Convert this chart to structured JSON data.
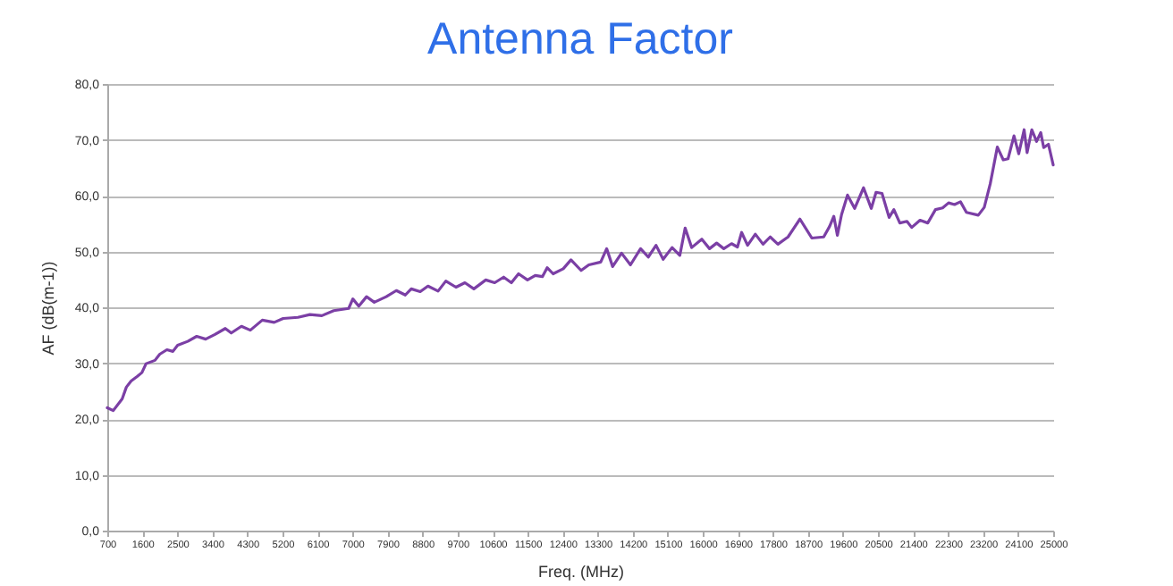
{
  "chart_data": {
    "type": "line",
    "title": "Antenna Factor",
    "xlabel": "Freq. (MHz)",
    "ylabel": "AF (dB(m-1))",
    "x": [
      700,
      853,
      1083,
      1190,
      1313,
      1466,
      1589,
      1696,
      1925,
      2048,
      2232,
      2385,
      2507,
      2767,
      2997,
      3227,
      3456,
      3732,
      3885,
      4146,
      4375,
      4682,
      4988,
      5218,
      5600,
      5906,
      6212,
      6518,
      6901,
      7008,
      7161,
      7360,
      7559,
      7866,
      8126,
      8356,
      8509,
      8739,
      8938,
      9198,
      9397,
      9657,
      9887,
      10117,
      10423,
      10652,
      10882,
      11081,
      11265,
      11495,
      11694,
      11878,
      12000,
      12153,
      12413,
      12612,
      12872,
      13071,
      13376,
      13529,
      13682,
      13911,
      14140,
      14400,
      14598,
      14797,
      14980,
      15209,
      15408,
      15545,
      15713,
      15973,
      16171,
      16354,
      16538,
      16737,
      16889,
      16996,
      17149,
      17348,
      17546,
      17730,
      17928,
      18188,
      18494,
      18799,
      19104,
      19257,
      19364,
      19456,
      19563,
      19716,
      19899,
      20128,
      20327,
      20449,
      20602,
      20785,
      20907,
      21060,
      21243,
      21365,
      21579,
      21777,
      21976,
      22159,
      22312,
      22465,
      22618,
      22771,
      23076,
      23229,
      23382,
      23565,
      23718,
      23840,
      23993,
      24115,
      24253,
      24329,
      24451,
      24573,
      24680,
      24756,
      24878,
      25000
    ],
    "series": [
      {
        "color": "#7b3fa5",
        "values": [
          22.0,
          21.5,
          23.6,
          25.7,
          26.8,
          27.6,
          28.3,
          29.9,
          30.5,
          31.6,
          32.4,
          32.1,
          33.2,
          33.9,
          34.8,
          34.3,
          35.1,
          36.2,
          35.4,
          36.6,
          35.9,
          37.7,
          37.3,
          38.0,
          38.2,
          38.7,
          38.5,
          39.4,
          39.8,
          41.5,
          40.2,
          41.9,
          40.9,
          41.9,
          43.0,
          42.2,
          43.3,
          42.8,
          43.8,
          42.9,
          44.7,
          43.6,
          44.4,
          43.3,
          44.9,
          44.4,
          45.4,
          44.4,
          46.0,
          44.9,
          45.7,
          45.5,
          47.1,
          46.0,
          46.9,
          48.5,
          46.6,
          47.6,
          48.1,
          50.5,
          47.3,
          49.7,
          47.6,
          50.5,
          49.0,
          51.1,
          48.6,
          50.7,
          49.3,
          54.2,
          50.7,
          52.2,
          50.5,
          51.5,
          50.5,
          51.4,
          50.8,
          53.4,
          51.1,
          53.1,
          51.3,
          52.6,
          51.3,
          52.6,
          55.8,
          52.4,
          52.6,
          54.5,
          56.3,
          52.9,
          56.6,
          60.1,
          57.7,
          61.4,
          57.7,
          60.6,
          60.4,
          56.1,
          57.5,
          55.1,
          55.4,
          54.3,
          55.6,
          55.1,
          57.5,
          57.8,
          58.7,
          58.4,
          58.9,
          57.0,
          56.5,
          57.9,
          62.1,
          68.7,
          66.4,
          66.6,
          70.7,
          67.5,
          71.8,
          67.7,
          71.8,
          69.7,
          71.3,
          68.6,
          69.2,
          65.5
        ]
      }
    ],
    "xlim": [
      700,
      25000
    ],
    "xticks": [
      700,
      1600,
      2500,
      3400,
      4300,
      5200,
      6100,
      7000,
      7900,
      8800,
      9700,
      10600,
      11500,
      12400,
      13300,
      14200,
      15100,
      16000,
      16900,
      17800,
      18700,
      19600,
      20500,
      21400,
      22300,
      23200,
      24100,
      25000
    ],
    "ylim": [
      0,
      80
    ],
    "yticks": [
      {
        "value": 0,
        "label": "0,0"
      },
      {
        "value": 10,
        "label": "10,0"
      },
      {
        "value": 20,
        "label": "20,0"
      },
      {
        "value": 30,
        "label": "30,0"
      },
      {
        "value": 40,
        "label": "40,0"
      },
      {
        "value": 50,
        "label": "50,0"
      },
      {
        "value": 60,
        "label": "60,0"
      },
      {
        "value": 70,
        "label": "70,0"
      },
      {
        "value": 80,
        "label": "80,0"
      }
    ],
    "grid": "y",
    "marker": "none",
    "line_style": "solid"
  }
}
